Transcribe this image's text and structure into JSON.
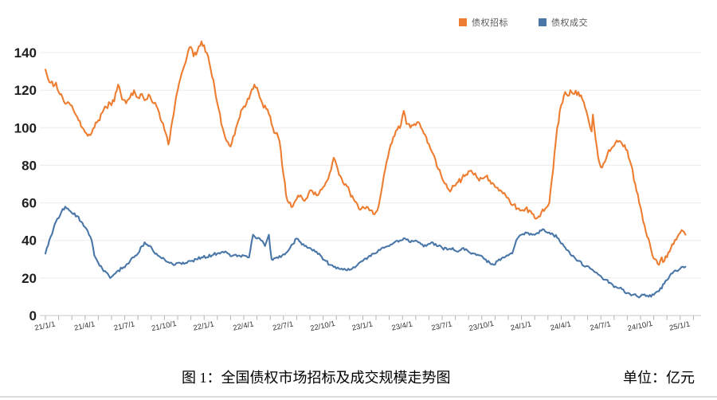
{
  "chart_data": {
    "type": "line",
    "caption": "图 1：全国债权市场招标及成交规模走势图",
    "unit_label": "单位：亿元",
    "ylim": [
      0,
      140
    ],
    "yticks": [
      0,
      20,
      40,
      60,
      80,
      100,
      120,
      140
    ],
    "x_tick_labels": [
      "21/1/1",
      "21/4/1",
      "21/7/1",
      "21/10/1",
      "22/1/1",
      "22/4/1",
      "22/7/1",
      "22/10/1",
      "23/1/1",
      "23/4/1",
      "23/7/1",
      "23/10/1",
      "24/1/1",
      "24/4/1",
      "24/7/1",
      "24/10/1",
      "25/1/1"
    ],
    "months_per_labeled_tick": 3,
    "grid": "horizontal",
    "legend_position": "top",
    "colors": {
      "bid_orange": "#ED7D31",
      "deal_blue": "#4A77A8",
      "grid": "#ececec",
      "axis": "#c8c8c8",
      "tick": "#b0b0b0"
    },
    "series": [
      {
        "name": "债权招标",
        "color": "#ED7D31",
        "points": [
          [
            0,
            131
          ],
          [
            0.2,
            126
          ],
          [
            0.4,
            124
          ],
          [
            0.6,
            122
          ],
          [
            0.8,
            124
          ],
          [
            1,
            119
          ],
          [
            1.3,
            116
          ],
          [
            1.6,
            113
          ],
          [
            1.9,
            112
          ],
          [
            2.2,
            108
          ],
          [
            2.5,
            104
          ],
          [
            2.8,
            100
          ],
          [
            3.1,
            97
          ],
          [
            3.4,
            96
          ],
          [
            3.7,
            100
          ],
          [
            4,
            104
          ],
          [
            4.3,
            108
          ],
          [
            4.6,
            111
          ],
          [
            4.9,
            113
          ],
          [
            5.2,
            114
          ],
          [
            5.5,
            123
          ],
          [
            5.8,
            115
          ],
          [
            6.1,
            113
          ],
          [
            6.4,
            116
          ],
          [
            6.7,
            120
          ],
          [
            7,
            116
          ],
          [
            7.3,
            118
          ],
          [
            7.6,
            115
          ],
          [
            7.9,
            117
          ],
          [
            8.2,
            113
          ],
          [
            8.5,
            110
          ],
          [
            8.8,
            103
          ],
          [
            9.1,
            97
          ],
          [
            9.3,
            91
          ],
          [
            9.6,
            104
          ],
          [
            9.9,
            117
          ],
          [
            10.2,
            126
          ],
          [
            10.5,
            133
          ],
          [
            10.8,
            141
          ],
          [
            11,
            143
          ],
          [
            11.2,
            138
          ],
          [
            11.5,
            141
          ],
          [
            11.8,
            146
          ],
          [
            12,
            144
          ],
          [
            12.2,
            140
          ],
          [
            12.5,
            131
          ],
          [
            12.8,
            121
          ],
          [
            13.1,
            110
          ],
          [
            13.4,
            100
          ],
          [
            13.7,
            93
          ],
          [
            14,
            90
          ],
          [
            14.3,
            96
          ],
          [
            14.6,
            104
          ],
          [
            14.9,
            110
          ],
          [
            15.2,
            113
          ],
          [
            15.5,
            118
          ],
          [
            15.8,
            123
          ],
          [
            16.1,
            119
          ],
          [
            16.4,
            113
          ],
          [
            16.7,
            110
          ],
          [
            17,
            106
          ],
          [
            17.2,
            100
          ],
          [
            17.4,
            97
          ],
          [
            17.6,
            95
          ],
          [
            17.8,
            88
          ],
          [
            18,
            75
          ],
          [
            18.2,
            64
          ],
          [
            18.4,
            60
          ],
          [
            18.7,
            58
          ],
          [
            19,
            62
          ],
          [
            19.3,
            64
          ],
          [
            19.6,
            61
          ],
          [
            19.9,
            65
          ],
          [
            20.2,
            66
          ],
          [
            20.5,
            64
          ],
          [
            20.8,
            67
          ],
          [
            21.1,
            69
          ],
          [
            21.4,
            73
          ],
          [
            21.8,
            84
          ],
          [
            22.1,
            78
          ],
          [
            22.4,
            73
          ],
          [
            22.7,
            70
          ],
          [
            23,
            66
          ],
          [
            23.3,
            62
          ],
          [
            23.6,
            59
          ],
          [
            23.9,
            57
          ],
          [
            24.2,
            57
          ],
          [
            24.5,
            56
          ],
          [
            24.8,
            54
          ],
          [
            25.1,
            56
          ],
          [
            25.4,
            66
          ],
          [
            25.7,
            78
          ],
          [
            26,
            88
          ],
          [
            26.3,
            95
          ],
          [
            26.6,
            99
          ],
          [
            26.9,
            102
          ],
          [
            27.1,
            109
          ],
          [
            27.3,
            102
          ],
          [
            27.6,
            100
          ],
          [
            27.9,
            102
          ],
          [
            28.2,
            103
          ],
          [
            28.5,
            99
          ],
          [
            28.8,
            95
          ],
          [
            29.1,
            89
          ],
          [
            29.4,
            85
          ],
          [
            29.7,
            78
          ],
          [
            30,
            73
          ],
          [
            30.3,
            70
          ],
          [
            30.6,
            66
          ],
          [
            30.9,
            69
          ],
          [
            31.2,
            71
          ],
          [
            31.5,
            73
          ],
          [
            31.8,
            75
          ],
          [
            32.1,
            77
          ],
          [
            32.4,
            75
          ],
          [
            32.7,
            73
          ],
          [
            33,
            73
          ],
          [
            33.3,
            74
          ],
          [
            33.6,
            72
          ],
          [
            33.9,
            70
          ],
          [
            34.2,
            68
          ],
          [
            34.5,
            66
          ],
          [
            34.8,
            64
          ],
          [
            35.1,
            61
          ],
          [
            35.4,
            59
          ],
          [
            35.7,
            57
          ],
          [
            36,
            56
          ],
          [
            36.3,
            57
          ],
          [
            36.6,
            56
          ],
          [
            36.9,
            54
          ],
          [
            37.2,
            52
          ],
          [
            37.5,
            55
          ],
          [
            37.8,
            57
          ],
          [
            38.1,
            60
          ],
          [
            38.4,
            78
          ],
          [
            38.7,
            100
          ],
          [
            39,
            112
          ],
          [
            39.3,
            119
          ],
          [
            39.5,
            117
          ],
          [
            39.7,
            120
          ],
          [
            40,
            118
          ],
          [
            40.3,
            119
          ],
          [
            40.6,
            115
          ],
          [
            40.9,
            109
          ],
          [
            41.1,
            103
          ],
          [
            41.3,
            98
          ],
          [
            41.4,
            107
          ],
          [
            41.6,
            94
          ],
          [
            41.8,
            84
          ],
          [
            42,
            79
          ],
          [
            42.2,
            81
          ],
          [
            42.5,
            86
          ],
          [
            42.8,
            89
          ],
          [
            43.1,
            92
          ],
          [
            43.4,
            93
          ],
          [
            43.7,
            90
          ],
          [
            44,
            88
          ],
          [
            44.3,
            80
          ],
          [
            44.6,
            70
          ],
          [
            44.9,
            60
          ],
          [
            45.2,
            50
          ],
          [
            45.5,
            42
          ],
          [
            45.8,
            35
          ],
          [
            46.1,
            30
          ],
          [
            46.4,
            27
          ],
          [
            46.6,
            31
          ],
          [
            46.8,
            29
          ],
          [
            47,
            31
          ],
          [
            47.2,
            34
          ],
          [
            47.5,
            38
          ],
          [
            47.8,
            42
          ],
          [
            48,
            44
          ],
          [
            48.2,
            45
          ],
          [
            48.4,
            43
          ]
        ]
      },
      {
        "name": "债权成交",
        "color": "#4A77A8",
        "points": [
          [
            0,
            33
          ],
          [
            0.4,
            42
          ],
          [
            0.8,
            50
          ],
          [
            1.2,
            55
          ],
          [
            1.5,
            58
          ],
          [
            1.8,
            56
          ],
          [
            2.1,
            54
          ],
          [
            2.4,
            53
          ],
          [
            2.7,
            50
          ],
          [
            3,
            47
          ],
          [
            3.2,
            45
          ],
          [
            3.5,
            40
          ],
          [
            3.7,
            32
          ],
          [
            4,
            28
          ],
          [
            4.3,
            25
          ],
          [
            4.6,
            23
          ],
          [
            4.9,
            20
          ],
          [
            5.2,
            22
          ],
          [
            5.5,
            24
          ],
          [
            5.8,
            25
          ],
          [
            6.1,
            27
          ],
          [
            6.4,
            29
          ],
          [
            6.7,
            31
          ],
          [
            7,
            33
          ],
          [
            7.3,
            37
          ],
          [
            7.5,
            39
          ],
          [
            7.8,
            37
          ],
          [
            8.1,
            35
          ],
          [
            8.4,
            33
          ],
          [
            8.7,
            31
          ],
          [
            9,
            30
          ],
          [
            9.4,
            28
          ],
          [
            9.8,
            27
          ],
          [
            10.2,
            28
          ],
          [
            10.6,
            28
          ],
          [
            11,
            29
          ],
          [
            11.4,
            30
          ],
          [
            11.8,
            31
          ],
          [
            12.2,
            31
          ],
          [
            12.6,
            32
          ],
          [
            13,
            33
          ],
          [
            13.4,
            34
          ],
          [
            13.8,
            33
          ],
          [
            14.2,
            32
          ],
          [
            14.6,
            32
          ],
          [
            15,
            32
          ],
          [
            15.4,
            31
          ],
          [
            15.7,
            43
          ],
          [
            16,
            41
          ],
          [
            16.3,
            40
          ],
          [
            16.6,
            37
          ],
          [
            16.9,
            43
          ],
          [
            17.1,
            30
          ],
          [
            17.5,
            31
          ],
          [
            17.9,
            32
          ],
          [
            18.3,
            34
          ],
          [
            18.7,
            38
          ],
          [
            19,
            41
          ],
          [
            19.3,
            39
          ],
          [
            19.6,
            37
          ],
          [
            20,
            36
          ],
          [
            20.4,
            34
          ],
          [
            20.8,
            32
          ],
          [
            21.2,
            29
          ],
          [
            21.6,
            27
          ],
          [
            22,
            25
          ],
          [
            22.4,
            25
          ],
          [
            22.8,
            24
          ],
          [
            23.2,
            25
          ],
          [
            23.6,
            27
          ],
          [
            24,
            29
          ],
          [
            24.4,
            31
          ],
          [
            24.8,
            33
          ],
          [
            25.2,
            35
          ],
          [
            25.6,
            36
          ],
          [
            26,
            37
          ],
          [
            26.4,
            39
          ],
          [
            26.8,
            40
          ],
          [
            27.2,
            41
          ],
          [
            27.6,
            39
          ],
          [
            28,
            40
          ],
          [
            28.4,
            38
          ],
          [
            28.8,
            37
          ],
          [
            29.2,
            39
          ],
          [
            29.6,
            37
          ],
          [
            30,
            36
          ],
          [
            30.4,
            35
          ],
          [
            30.8,
            36
          ],
          [
            31.2,
            34
          ],
          [
            31.6,
            36
          ],
          [
            32,
            34
          ],
          [
            32.4,
            33
          ],
          [
            32.8,
            32
          ],
          [
            33.2,
            30
          ],
          [
            33.6,
            28
          ],
          [
            33.9,
            27
          ],
          [
            34.2,
            29
          ],
          [
            34.6,
            31
          ],
          [
            35,
            32
          ],
          [
            35.3,
            33
          ],
          [
            35.6,
            40
          ],
          [
            36,
            43
          ],
          [
            36.4,
            44
          ],
          [
            36.8,
            43
          ],
          [
            37.2,
            44
          ],
          [
            37.6,
            46
          ],
          [
            38,
            44
          ],
          [
            38.4,
            43
          ],
          [
            38.8,
            41
          ],
          [
            39.2,
            37
          ],
          [
            39.6,
            34
          ],
          [
            40,
            31
          ],
          [
            40.4,
            29
          ],
          [
            40.8,
            26
          ],
          [
            41.2,
            25
          ],
          [
            41.6,
            23
          ],
          [
            42,
            21
          ],
          [
            42.4,
            19
          ],
          [
            42.8,
            17
          ],
          [
            43.2,
            15
          ],
          [
            43.6,
            14
          ],
          [
            44,
            12
          ],
          [
            44.4,
            11
          ],
          [
            44.8,
            10
          ],
          [
            45.2,
            11
          ],
          [
            45.6,
            10
          ],
          [
            46,
            11
          ],
          [
            46.4,
            13
          ],
          [
            46.8,
            17
          ],
          [
            47.2,
            21
          ],
          [
            47.6,
            24
          ],
          [
            48,
            25
          ],
          [
            48.4,
            26
          ]
        ]
      }
    ]
  }
}
